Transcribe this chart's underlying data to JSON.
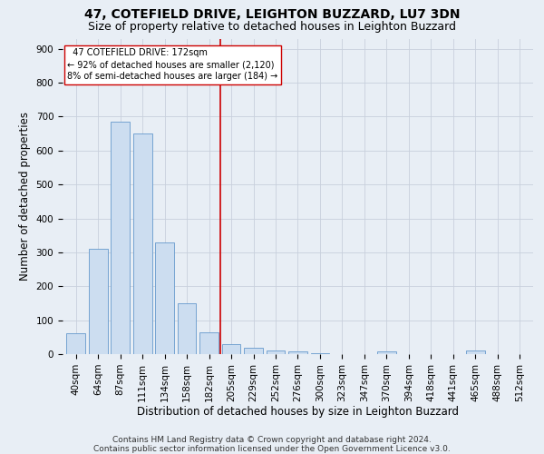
{
  "title": "47, COTEFIELD DRIVE, LEIGHTON BUZZARD, LU7 3DN",
  "subtitle": "Size of property relative to detached houses in Leighton Buzzard",
  "xlabel": "Distribution of detached houses by size in Leighton Buzzard",
  "ylabel": "Number of detached properties",
  "bar_labels": [
    "40sqm",
    "64sqm",
    "87sqm",
    "111sqm",
    "134sqm",
    "158sqm",
    "182sqm",
    "205sqm",
    "229sqm",
    "252sqm",
    "276sqm",
    "300sqm",
    "323sqm",
    "347sqm",
    "370sqm",
    "394sqm",
    "418sqm",
    "441sqm",
    "465sqm",
    "488sqm",
    "512sqm"
  ],
  "bar_values": [
    62,
    310,
    685,
    650,
    330,
    150,
    63,
    30,
    18,
    10,
    8,
    2,
    0,
    0,
    8,
    0,
    0,
    0,
    10,
    0,
    0
  ],
  "bar_color": "#ccddf0",
  "bar_edge_color": "#6699cc",
  "grid_color": "#c8d0dc",
  "background_color": "#e8eef5",
  "vline_x_index": 6.5,
  "vline_color": "#cc0000",
  "annotation_text": "  47 COTEFIELD DRIVE: 172sqm\n← 92% of detached houses are smaller (2,120)\n8% of semi-detached houses are larger (184) →",
  "annotation_box_color": "white",
  "annotation_box_edge": "#cc0000",
  "ylim": [
    0,
    930
  ],
  "yticks": [
    0,
    100,
    200,
    300,
    400,
    500,
    600,
    700,
    800,
    900
  ],
  "footer": "Contains HM Land Registry data © Crown copyright and database right 2024.\nContains public sector information licensed under the Open Government Licence v3.0.",
  "title_fontsize": 10,
  "subtitle_fontsize": 9,
  "xlabel_fontsize": 8.5,
  "ylabel_fontsize": 8.5,
  "tick_fontsize": 7.5,
  "footer_fontsize": 6.5
}
